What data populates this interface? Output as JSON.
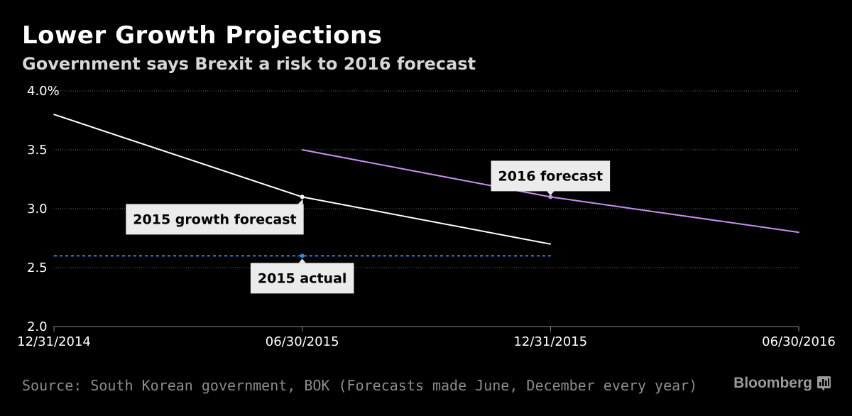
{
  "header": {
    "title": "Lower Growth Projections",
    "subtitle": "Government says Brexit a risk to 2016 forecast"
  },
  "footer": {
    "source": "Source: South Korean government, BOK (Forecasts made June, December every year)",
    "brand": "Bloomberg"
  },
  "colors": {
    "background": "#000000",
    "series_2015": "#ffffff",
    "series_2016": "#c98ff0",
    "actual_2015": "#2f86e6",
    "grid": "#666666",
    "callout_bg": "#ebebeb"
  },
  "chart_data": {
    "type": "line",
    "title": "Lower Growth Projections",
    "subtitle": "Government says Brexit a risk to 2016 forecast",
    "x_ticks": [
      "12/31/2014",
      "06/30/2015",
      "12/31/2015",
      "06/30/2016"
    ],
    "y_ticks": [
      "4.0%",
      "3.5",
      "3.0",
      "2.5",
      "2.0"
    ],
    "y_tick_values": [
      4.0,
      3.5,
      3.0,
      2.5,
      2.0
    ],
    "ylim": [
      2.0,
      4.0
    ],
    "grid": true,
    "series": [
      {
        "name": "2015 growth forecast",
        "style": "solid",
        "color": "#ffffff",
        "points": [
          {
            "x": 0,
            "y": 3.8
          },
          {
            "x": 1,
            "y": 3.1
          },
          {
            "x": 2,
            "y": 2.7
          }
        ]
      },
      {
        "name": "2016 forecast",
        "style": "solid",
        "color": "#c98ff0",
        "points": [
          {
            "x": 1,
            "y": 3.5
          },
          {
            "x": 2,
            "y": 3.1
          },
          {
            "x": 3,
            "y": 2.8
          }
        ]
      },
      {
        "name": "2015 actual",
        "style": "dotted",
        "color": "#2f86e6",
        "points": [
          {
            "x": 0,
            "y": 2.6
          },
          {
            "x": 2,
            "y": 2.6
          }
        ]
      }
    ],
    "annotations": [
      {
        "label": "2015 growth forecast",
        "x": 1,
        "y": 3.1,
        "position": "below-left"
      },
      {
        "label": "2016 forecast",
        "x": 2,
        "y": 3.1,
        "position": "above"
      },
      {
        "label": "2015 actual",
        "x": 1,
        "y": 2.6,
        "position": "below"
      }
    ]
  }
}
